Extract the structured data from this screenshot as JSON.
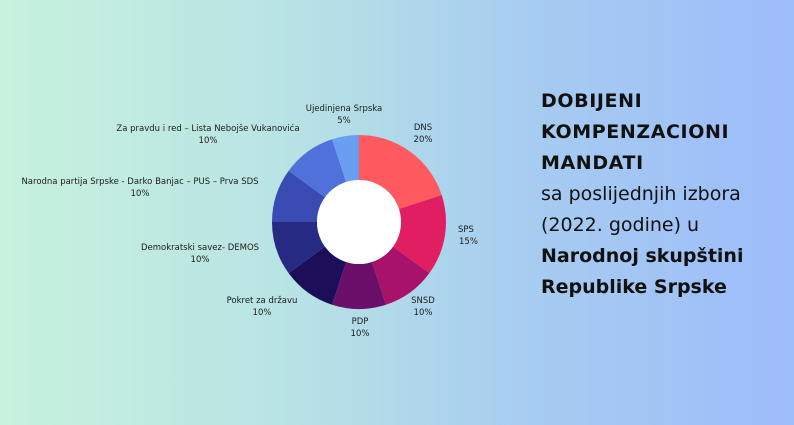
{
  "chart_data": {
    "type": "pie",
    "slices": [
      {
        "name": "DNS",
        "value": 20,
        "label": "20%",
        "color": "#ff5a5f"
      },
      {
        "name": "SPS",
        "value": 15,
        "label": "15%",
        "color": "#e21e63"
      },
      {
        "name": "SNSD",
        "value": 10,
        "label": "10%",
        "color": "#a8126a"
      },
      {
        "name": "PDP",
        "value": 10,
        "label": "10%",
        "color": "#6b0f6a"
      },
      {
        "name": "Pokret za državu",
        "value": 10,
        "label": "10%",
        "color": "#1d0e5a"
      },
      {
        "name": "Demokratski savez- DEMOS",
        "value": 10,
        "label": "10%",
        "color": "#272a82"
      },
      {
        "name": "Narodna partija Srpske - Darko Banjac – PUS – Prva SDS",
        "value": 10,
        "label": "10%",
        "color": "#3a4cb4"
      },
      {
        "name": "Za pravdu i red – Lista Nebojše Vukanovića",
        "value": 10,
        "label": "10%",
        "color": "#4f71d9"
      },
      {
        "name": "Ujedinjena Srpska",
        "value": 5,
        "label": "5%",
        "color": "#6a9ef0"
      }
    ]
  },
  "headline": {
    "bold1": "DOBIJENI KOMPENZACIONI MANDATI",
    "normal1": "sa poslijednjih izbora (2022. godine) u",
    "bold2": "Narodnoj skupštini Republike Srpske"
  }
}
